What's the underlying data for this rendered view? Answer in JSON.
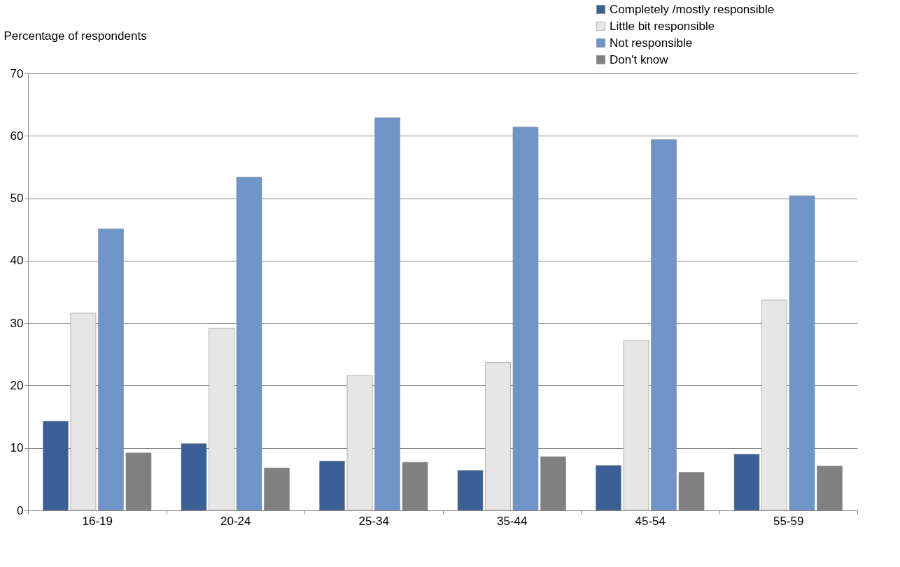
{
  "chart_data": {
    "type": "bar",
    "ylabel": "Percentage of respondents",
    "categories": [
      "16-19",
      "20-24",
      "25-34",
      "35-44",
      "45-54",
      "55-59"
    ],
    "series": [
      {
        "name": "Completely /mostly responsible",
        "color": "#3a5f94",
        "values": [
          14.3,
          10.7,
          7.9,
          6.4,
          7.2,
          9.0
        ]
      },
      {
        "name": "Little bit responsible",
        "color": "#e6e6e6",
        "values": [
          31.6,
          29.2,
          21.6,
          23.7,
          27.2,
          33.7
        ]
      },
      {
        "name": "Not responsible",
        "color": "#6f95c8",
        "values": [
          45.1,
          53.4,
          62.9,
          61.4,
          59.4,
          50.4
        ]
      },
      {
        "name": "Don't know",
        "color": "#808080",
        "values": [
          9.2,
          6.8,
          7.7,
          8.6,
          6.1,
          7.1
        ]
      }
    ],
    "ylim": [
      0,
      70
    ],
    "yticks": [
      0,
      10,
      20,
      30,
      40,
      50,
      60,
      70
    ],
    "grid": "y",
    "legend": "top right"
  }
}
